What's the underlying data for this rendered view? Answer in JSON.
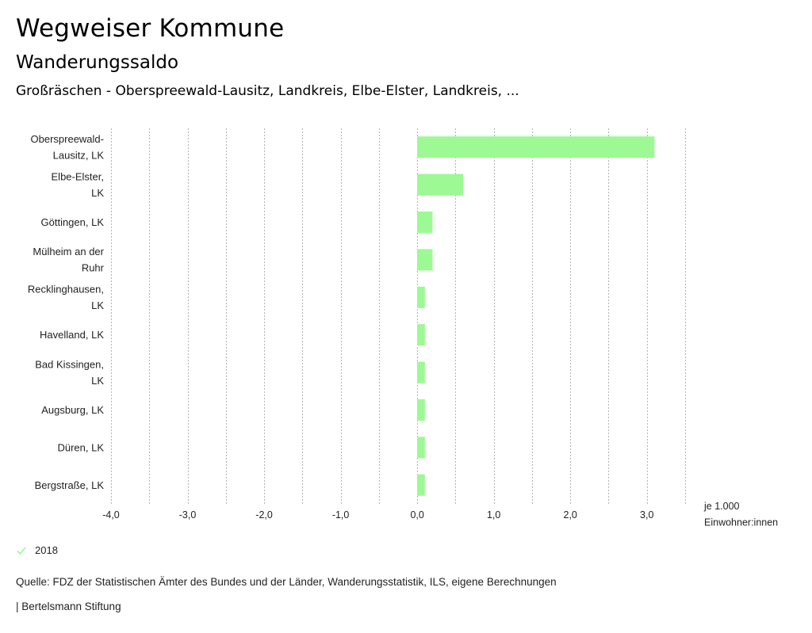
{
  "header": {
    "title": "Wegweiser Kommune",
    "subtitle": "Wanderungssaldo",
    "region": "Großräschen - Oberspreewald-Lausitz, Landkreis, Elbe-Elster, Landkreis, ..."
  },
  "legend": {
    "icon": "check-icon",
    "label": "2018"
  },
  "footer": {
    "source": "Quelle: FDZ der Statistischen Ämter des Bundes und der Länder, Wanderungsstatistik, ILS, eigene Berechnungen",
    "credit": "| Bertelsmann Stiftung"
  },
  "colors": {
    "bar": "#9cf994",
    "grid": "#b3b3b3",
    "check": "#9cf994"
  },
  "chart_data": {
    "type": "bar",
    "orientation": "horizontal",
    "title": "Wanderungssaldo",
    "categories": [
      [
        "Oberspreewald-",
        "Lausitz, LK"
      ],
      [
        "Elbe-Elster,",
        "LK"
      ],
      [
        "Göttingen, LK"
      ],
      [
        "Mülheim an der",
        "Ruhr"
      ],
      [
        "Recklinghausen,",
        "LK"
      ],
      [
        "Havelland, LK"
      ],
      [
        "Bad Kissingen,",
        "LK"
      ],
      [
        "Augsburg, LK"
      ],
      [
        "Düren, LK"
      ],
      [
        "Bergstraße, LK"
      ]
    ],
    "series": [
      {
        "name": "2018",
        "values": [
          3.1,
          0.6,
          0.2,
          0.2,
          0.1,
          0.1,
          0.1,
          0.1,
          0.1,
          0.1
        ]
      }
    ],
    "xlim": [
      -4.0,
      3.5
    ],
    "xticks": [
      -4.0,
      -3.0,
      -2.0,
      -1.0,
      0.0,
      1.0,
      2.0,
      3.0
    ],
    "xtick_labels": [
      "-4,0",
      "-3,0",
      "-2,0",
      "-1,0",
      "0,0",
      "1,0",
      "2,0",
      "3,0"
    ],
    "grid_step": 0.5,
    "grid": true,
    "xlabel": [
      "je 1.000",
      "Einwohner:innen"
    ],
    "ylabel": "",
    "legend_position": "bottom-left"
  }
}
